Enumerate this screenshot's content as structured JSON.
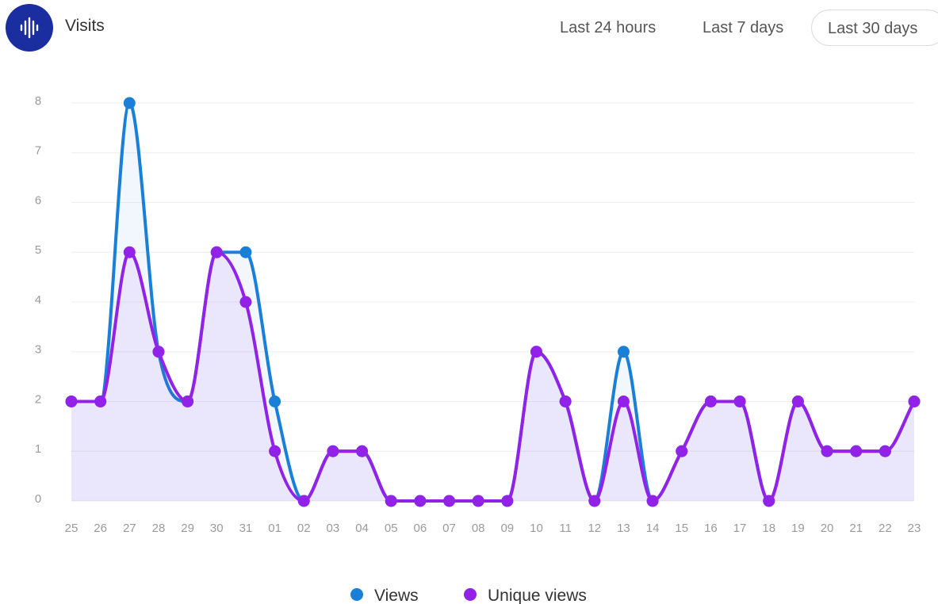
{
  "header": {
    "title": "Visits",
    "ranges": [
      "Last 24 hours",
      "Last 7 days",
      "Last 30 days"
    ]
  },
  "chart_data": {
    "type": "line",
    "categories": [
      "25",
      "26",
      "27",
      "28",
      "29",
      "30",
      "31",
      "01",
      "02",
      "03",
      "04",
      "05",
      "06",
      "07",
      "08",
      "09",
      "10",
      "11",
      "12",
      "13",
      "14",
      "15",
      "16",
      "17",
      "18",
      "19",
      "20",
      "21",
      "22",
      "23"
    ],
    "series": [
      {
        "name": "Views",
        "color": "#1a7fd6",
        "values": [
          2,
          2,
          8,
          3,
          2,
          5,
          5,
          2,
          0,
          1,
          1,
          0,
          0,
          0,
          0,
          0,
          3,
          2,
          0,
          3,
          0,
          1,
          2,
          2,
          0,
          2,
          1,
          1,
          1,
          2
        ]
      },
      {
        "name": "Unique views",
        "color": "#9222e8",
        "values": [
          2,
          2,
          5,
          3,
          2,
          5,
          4,
          1,
          0,
          1,
          1,
          0,
          0,
          0,
          0,
          0,
          3,
          2,
          0,
          2,
          0,
          1,
          2,
          2,
          0,
          2,
          1,
          1,
          1,
          2
        ]
      }
    ],
    "ylim": [
      0,
      8
    ],
    "yticks": [
      0,
      1,
      2,
      3,
      4,
      5,
      6,
      7,
      8
    ],
    "grid": true,
    "legend": "bottom"
  }
}
